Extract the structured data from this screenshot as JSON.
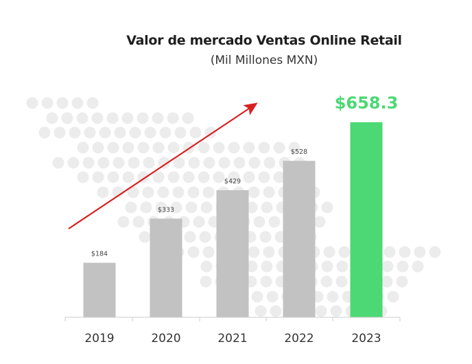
{
  "chart_data": {
    "type": "bar",
    "title": "Valor de mercado Ventas Online Retail",
    "subtitle": "(Mil Millones MXN)",
    "categories": [
      "2019",
      "2020",
      "2021",
      "2022",
      "2023"
    ],
    "values": [
      184,
      333,
      429,
      528,
      658.3
    ],
    "data_labels": [
      "$184",
      "$333",
      "$429",
      "$528",
      "$658.3"
    ],
    "highlight_index": 4,
    "xlabel": "",
    "ylabel": "",
    "ylim": [
      0,
      720
    ],
    "grid": false,
    "legend": "none",
    "annotations": [
      "upward-trend-arrow"
    ]
  },
  "colors": {
    "bar": "#c2c2c2",
    "highlight_bar": "#4cd874",
    "highlight_label": "#4cd874",
    "arrow": "#d92020",
    "dots": "#ececec",
    "axis": "#cccccc",
    "text": "#333333"
  }
}
